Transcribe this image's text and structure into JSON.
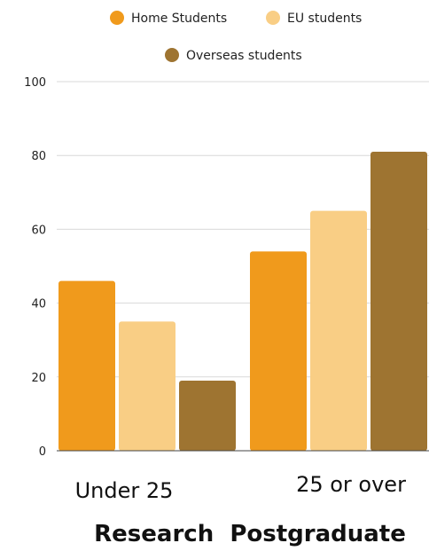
{
  "chart_data": {
    "type": "bar",
    "title": "",
    "categories": [
      "Under 25",
      "25 or over"
    ],
    "series": [
      {
        "name": "Home Students",
        "values": [
          46,
          54
        ],
        "color": "#f09a1c"
      },
      {
        "name": "EU students",
        "values": [
          35,
          65
        ],
        "color": "#f9ce85"
      },
      {
        "name": "Overseas students",
        "values": [
          19,
          81
        ],
        "color": "#9e7431"
      }
    ],
    "xlabel": "Research  Postgraduate",
    "ylabel": "",
    "ylim": [
      0,
      100
    ],
    "yticks": [
      "0",
      "20",
      "40",
      "60",
      "80",
      "100"
    ],
    "grid": true,
    "legend_position": "top"
  }
}
